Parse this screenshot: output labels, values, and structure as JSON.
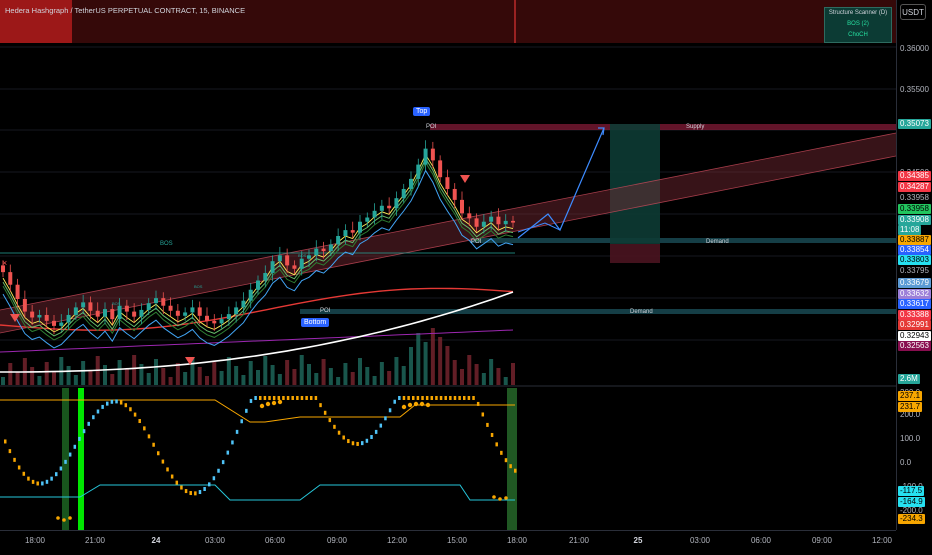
{
  "header": {
    "title": "Hedera Hashgraph / TetherUS PERPETUAL CONTRACT, 15, BINANCE",
    "currency_button": "USDT"
  },
  "structure_scanner": {
    "title": "Structure Scanner (D)",
    "row1": "BOS (2)",
    "row2": "ChoCH"
  },
  "price_axis": {
    "gridlabels": [
      "0.36000",
      "0.35500",
      "0.34500"
    ],
    "badges": [
      {
        "text": "0.35073",
        "color": "#26a69a",
        "fg": "#ffffff"
      },
      {
        "text": "0.34385",
        "color": "#f23645",
        "fg": "#ffffff"
      },
      {
        "text": "0.34287",
        "color": "#f23645",
        "fg": "#ffffff"
      },
      {
        "text": "0.33958",
        "color": "#000000",
        "fg": "#b2b5be"
      },
      {
        "text": "0.33958",
        "color": "#22c55e",
        "fg": "#000000"
      },
      {
        "text": "0.33908",
        "color": "#26a69a",
        "fg": "#ffffff"
      },
      {
        "text": "11:08",
        "color": "#26a69a",
        "fg": "#ffffff"
      },
      {
        "text": "0.33887",
        "color": "#f7a600",
        "fg": "#000000"
      },
      {
        "text": "0.33854",
        "color": "#2962ff",
        "fg": "#ffffff"
      },
      {
        "text": "0.33803",
        "color": "#26e0f0",
        "fg": "#000000"
      },
      {
        "text": "0.33795",
        "color": "#000000",
        "fg": "#b2b5be"
      },
      {
        "text": "0.33679",
        "color": "#5b9bd5",
        "fg": "#ffffff"
      },
      {
        "text": "0.33632",
        "color": "#9c7fd8",
        "fg": "#ffffff"
      },
      {
        "text": "0.33617",
        "color": "#2962ff",
        "fg": "#ffffff"
      },
      {
        "text": "0.33388",
        "color": "#f23645",
        "fg": "#ffffff"
      },
      {
        "text": "0.32991",
        "color": "#e53935",
        "fg": "#ffffff"
      },
      {
        "text": "0.32943",
        "color": "#ffffff",
        "fg": "#000000"
      },
      {
        "text": "0.32563",
        "color": "#880e4f",
        "fg": "#ffffff"
      },
      {
        "text": "2.6M",
        "color": "#26a69a",
        "fg": "#ffffff"
      }
    ],
    "osc_badges": [
      {
        "text": "237.1",
        "color": "#f7a600",
        "fg": "#000000"
      },
      {
        "text": "231.7",
        "color": "#f7a600",
        "fg": "#000000"
      },
      {
        "text": "-117.5",
        "color": "#26e0f0",
        "fg": "#000000"
      },
      {
        "text": "-164.9",
        "color": "#26e0f0",
        "fg": "#000000"
      },
      {
        "text": "-234.3",
        "color": "#f7a600",
        "fg": "#000000"
      }
    ],
    "osc_labels": [
      "300.0",
      "200.0",
      "100.0",
      "0.0",
      "-100.0",
      "-200.0"
    ]
  },
  "time_axis": {
    "labels": [
      {
        "text": "18:00",
        "bold": false
      },
      {
        "text": "21:00",
        "bold": false
      },
      {
        "text": "24",
        "bold": true
      },
      {
        "text": "03:00",
        "bold": false
      },
      {
        "text": "06:00",
        "bold": false
      },
      {
        "text": "09:00",
        "bold": false
      },
      {
        "text": "12:00",
        "bold": false
      },
      {
        "text": "15:00",
        "bold": false
      },
      {
        "text": "18:00",
        "bold": false
      },
      {
        "text": "21:00",
        "bold": false
      },
      {
        "text": "25",
        "bold": true
      },
      {
        "text": "03:00",
        "bold": false
      },
      {
        "text": "06:00",
        "bold": false
      },
      {
        "text": "09:00",
        "bold": false
      },
      {
        "text": "12:00",
        "bold": false
      }
    ]
  },
  "annotations": {
    "top_tag": "Top",
    "bottom_tag": "Bottom",
    "poi_top": "POI",
    "poi_mid": "POI",
    "poi_bottom": "POI",
    "supply": "Supply",
    "demand_upper": "Demand",
    "demand_lower": "Demand",
    "bos": "BOS",
    "small_bos_1": "BOS",
    "small_bos_2": "BOS",
    "small_bos_3": "BOS"
  },
  "chart_data": {
    "type": "candlestick",
    "symbol": "Hedera Hashgraph / TetherUS PERPETUAL CONTRACT",
    "interval": "15",
    "exchange": "BINANCE",
    "y_axis_ticks": [
      0.36,
      0.355,
      0.345
    ],
    "last_price": 0.33908,
    "countdown": "11:08",
    "volume_last": "2.6M",
    "close_series": [
      0.3332,
      0.3317,
      0.33,
      0.3285,
      0.3278,
      0.3281,
      0.3274,
      0.3268,
      0.3272,
      0.3281,
      0.329,
      0.3296,
      0.3286,
      0.3279,
      0.3288,
      0.3276,
      0.3292,
      0.3285,
      0.3279,
      0.3287,
      0.3295,
      0.3301,
      0.3292,
      0.3286,
      0.328,
      0.3284,
      0.329,
      0.328,
      0.3274,
      0.3271,
      0.3276,
      0.3282,
      0.329,
      0.3298,
      0.3311,
      0.3322,
      0.3331,
      0.3345,
      0.3352,
      0.334,
      0.3336,
      0.3348,
      0.3352,
      0.336,
      0.3357,
      0.3365,
      0.3375,
      0.3382,
      0.3379,
      0.3392,
      0.3397,
      0.3405,
      0.3411,
      0.3408,
      0.342,
      0.3431,
      0.3443,
      0.346,
      0.3479,
      0.3465,
      0.3445,
      0.3431,
      0.3418,
      0.3402,
      0.3396,
      0.3386,
      0.3392,
      0.3398,
      0.3389,
      0.3393,
      0.3391
    ]
  }
}
